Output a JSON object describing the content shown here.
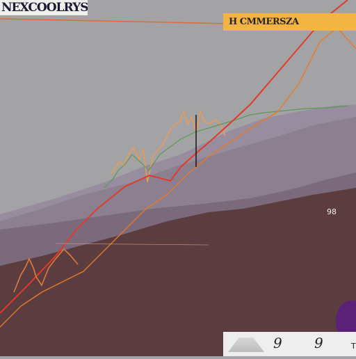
{
  "chart_data": {
    "type": "area",
    "title": "NEXCOOLRYS",
    "banner": "H CMMERSZA",
    "corner_label": "98",
    "legend": {
      "values": [
        "9",
        "9"
      ],
      "unit": "T"
    },
    "x_tick_labels": [
      "",
      "",
      "",
      "",
      ""
    ],
    "colors": {
      "sky": "#a3a3a5",
      "band_light": "#978d9e",
      "band_mid": "#7a6879",
      "ground": "#5b3d40",
      "line_red": "#e03a2a",
      "line_orange": "#e8792a",
      "line_green": "#5a9a55",
      "accent_purple": "#5b1a86"
    }
  }
}
